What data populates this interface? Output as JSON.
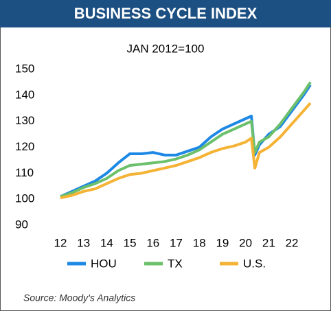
{
  "chart_data": {
    "type": "line",
    "title": "BUSINESS CYCLE INDEX",
    "subtitle": "JAN 2012=100",
    "source": "Source: Moody's Analytics",
    "x": [
      12,
      12.5,
      13,
      13.5,
      14,
      14.5,
      15,
      15.5,
      16,
      16.5,
      17,
      17.5,
      18,
      18.5,
      19,
      19.5,
      20,
      20.25,
      20.4,
      20.6,
      21,
      21.5,
      22,
      22.5,
      22.8
    ],
    "series": [
      {
        "name": "HOU",
        "color": "#1e88e5",
        "values": [
          101,
          103,
          105,
          107,
          110,
          114,
          117.5,
          117.5,
          118,
          117,
          117,
          118.5,
          120,
          124,
          127,
          129,
          131,
          132,
          117,
          121,
          125,
          128,
          134,
          140,
          144
        ]
      },
      {
        "name": "TX",
        "color": "#6cc06c",
        "values": [
          101,
          102.5,
          104.5,
          106,
          108,
          111,
          113,
          113.5,
          114,
          114.5,
          115.5,
          117,
          119,
          122,
          125,
          127,
          129,
          130,
          118,
          122,
          124,
          129,
          135,
          141,
          145
        ]
      },
      {
        "name": "U.S.",
        "color": "#f5b335",
        "values": [
          100.5,
          101.5,
          103,
          104,
          106,
          108,
          109.5,
          110,
          111,
          112,
          113,
          114.5,
          116,
          118,
          119.5,
          120.5,
          122,
          123.5,
          112,
          118,
          120,
          124,
          129,
          134,
          137
        ]
      }
    ],
    "xlim": [
      12,
      22.8
    ],
    "xticks": [
      12,
      13,
      14,
      15,
      16,
      17,
      18,
      19,
      20,
      21,
      22
    ],
    "ylim": [
      90,
      150
    ],
    "yticks": [
      90,
      100,
      110,
      120,
      130,
      140,
      150
    ],
    "grid": false,
    "legend": "bottom"
  }
}
